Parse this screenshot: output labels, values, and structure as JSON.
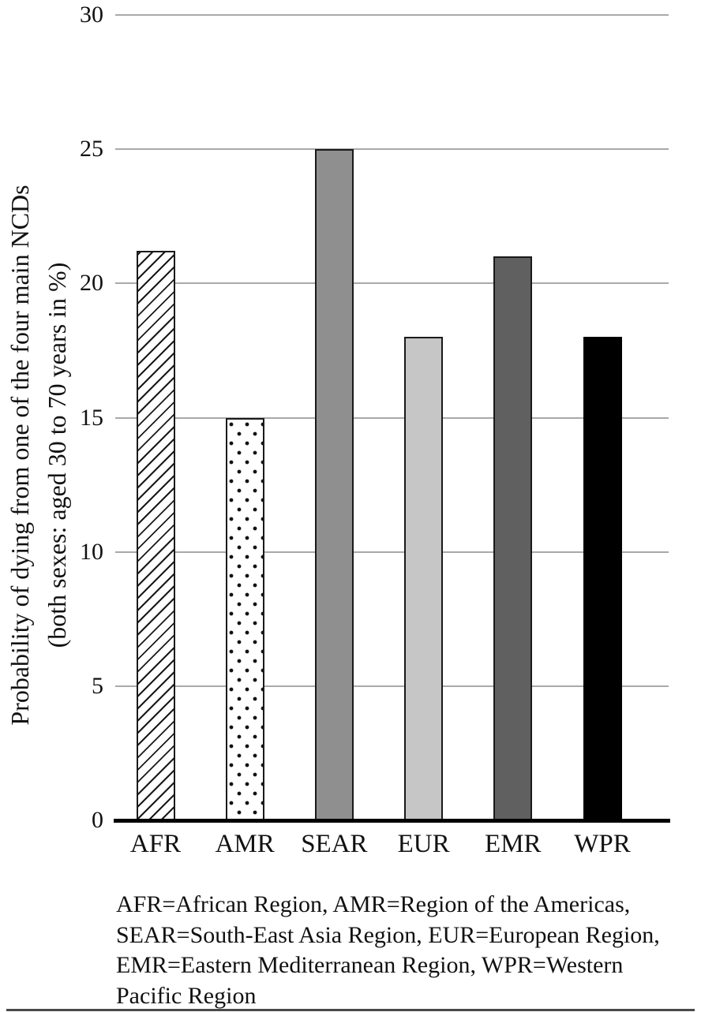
{
  "chart_data": {
    "type": "bar",
    "title": "",
    "categories": [
      "AFR",
      "AMR",
      "SEAR",
      "EUR",
      "EMR",
      "WPR"
    ],
    "values": [
      21.2,
      15,
      25,
      18,
      21,
      18
    ],
    "ylabel_line1": "Probability of dying from one of the four main NCDs",
    "ylabel_line2": "(both sexes: aged 30 to 70 years in %)",
    "xlabel": "",
    "ylim": [
      0,
      30
    ],
    "yticks": [
      0,
      5,
      10,
      15,
      20,
      25,
      30
    ],
    "grid": "horizontal",
    "legend_position": "none",
    "bar_styles": [
      {
        "pattern": "diagonal-hatch",
        "fill": "#ffffff",
        "stroke": "#1a1a1a"
      },
      {
        "pattern": "polka-dots",
        "fill": "#ffffff",
        "stroke": "#1a1a1a"
      },
      {
        "pattern": "solid",
        "fill": "#8f8f8f",
        "stroke": "#1a1a1a"
      },
      {
        "pattern": "solid",
        "fill": "#c6c6c6",
        "stroke": "#1a1a1a"
      },
      {
        "pattern": "solid",
        "fill": "#606060",
        "stroke": "#1a1a1a"
      },
      {
        "pattern": "solid",
        "fill": "#000000",
        "stroke": "#000000"
      }
    ]
  },
  "caption": {
    "lines": [
      "AFR=African Region, AMR=Region of the Americas,",
      "SEAR=South-East Asia Region, EUR=European Region,",
      "EMR=Eastern Mediterranean Region, WPR=Western",
      "Pacific Region"
    ]
  },
  "colors": {
    "gridline": "#a9a9a9",
    "axis": "#000000",
    "text": "#111111",
    "background": "#ffffff"
  }
}
